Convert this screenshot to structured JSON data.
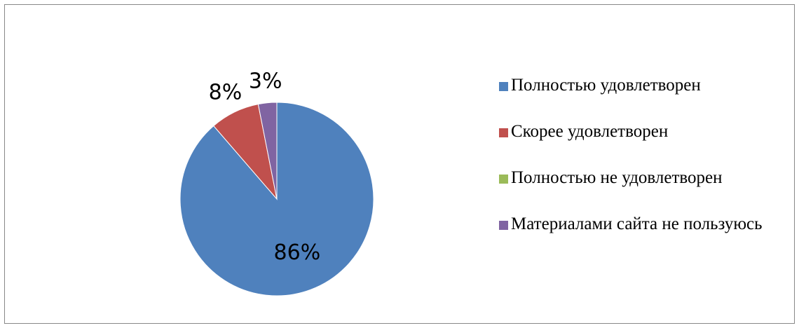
{
  "chart_data": {
    "type": "pie",
    "categories": [
      "Полностью удовлетворен",
      "Скорее удовлетворен",
      "Полностью не удовлетворен",
      "Материалами сайта не пользуюсь"
    ],
    "values": [
      86,
      8,
      0,
      3
    ],
    "value_labels": [
      "86%",
      "8%",
      null,
      "3%"
    ],
    "colors": [
      "#4f81bd",
      "#c0504d",
      "#9bbb59",
      "#8064a2"
    ],
    "legend": "right"
  }
}
